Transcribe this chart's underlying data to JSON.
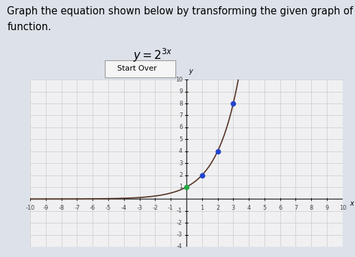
{
  "title_line1": "Graph the equation shown below by transforming the given graph of the parent",
  "title_line2": "function.",
  "equation": "y = 2^{3x}",
  "xmin": -10,
  "xmax": 10,
  "ymin": -4,
  "ymax": 10,
  "background_color": "#ededee",
  "plot_bg_color": "#f0f0f2",
  "grid_color": "#c8c8c8",
  "curve_color": "#5a3a2a",
  "dot_color_blue": "#2244cc",
  "dot_color_green": "#22aa44",
  "dot_points_x": [
    1,
    2,
    3
  ],
  "dot_points_y": [
    2,
    4,
    8
  ],
  "origin_dot_x": 0,
  "origin_dot_y": 1,
  "button_text": "Start Over",
  "axis_color": "#333333",
  "tick_color": "#444444",
  "font_size_title": 10.5,
  "font_size_tick": 6,
  "page_bg": "#dde2ea"
}
